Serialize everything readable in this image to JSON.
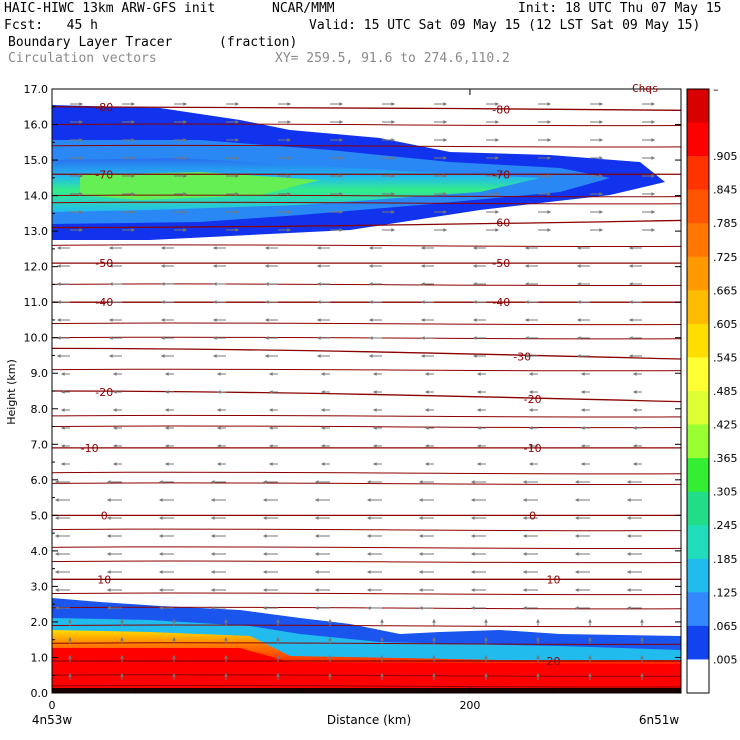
{
  "header": {
    "line1_left": "HAIC-HIWC 13km ARW-GFS init",
    "line1_mid": "NCAR/MMM",
    "line1_right": "Init: 18 UTC Thu 07 May 15",
    "line2_left": "Fcst:   45 h",
    "line2_right": "Valid: 15 UTC Sat 09 May 15 (12 LST Sat 09 May 15)",
    "line3_left": "Boundary Layer Tracer",
    "line3_mid": "(fraction)",
    "line4_left": "Circulation vectors",
    "line4_mid": "XY= 259.5, 91.6 to 274.6,110.2"
  },
  "chart_data": {
    "type": "heatmap",
    "title": "Boundary Layer Tracer (fraction)",
    "subtitle": "Circulation vectors",
    "xlabel": "Distance (km)",
    "ylabel": "Height (km)",
    "xlim": [
      0,
      301
    ],
    "ylim": [
      0,
      17
    ],
    "x_ticks": [
      0,
      200
    ],
    "x_tick_labels": [
      "0",
      "200"
    ],
    "x_end_labels": [
      "4n53w",
      "6n51w"
    ],
    "y_ticks": [
      0,
      1,
      2,
      3,
      4,
      5,
      6,
      7,
      8,
      9,
      10,
      11,
      12,
      13,
      14,
      15,
      16,
      17
    ],
    "y_tick_labels": [
      "0.0",
      "1.0",
      "2.0",
      "3.0",
      "4.0",
      "5.0",
      "6.0",
      "7.0",
      "8.0",
      "9.0",
      "10.0",
      "11.0",
      "12.0",
      "13.0",
      "14.0",
      "15.0",
      "16.0",
      "17.0"
    ],
    "corner_label": "Chqs",
    "colorbar": {
      "labels": [
        "–",
        ".905",
        ".845",
        ".785",
        ".725",
        ".665",
        ".605",
        ".545",
        ".485",
        ".425",
        ".365",
        ".305",
        ".245",
        ".185",
        ".125",
        ".065",
        ".005"
      ],
      "colors": [
        "#d90000",
        "#ff0000",
        "#ff3300",
        "#ff5500",
        "#ff7700",
        "#ff9900",
        "#ffbb00",
        "#ffdd00",
        "#ffff33",
        "#ddff33",
        "#99ff33",
        "#33ee33",
        "#22dd88",
        "#22ddbb",
        "#22bbee",
        "#3388ff",
        "#1144ee",
        "#ffffff"
      ]
    },
    "temperature_contours": [
      {
        "label": "-80",
        "y": 16.5,
        "y_end": 16.4,
        "label_x": [
          25,
          215
        ]
      },
      {
        "label": "-70",
        "y": 14.6,
        "y_end": 14.6,
        "label_x": [
          25,
          215
        ]
      },
      {
        "label": "-60",
        "y": 13.1,
        "y_end": 13.3,
        "label_x": [
          215
        ]
      },
      {
        "label": "-50",
        "y": 12.1,
        "y_end": 12.1,
        "label_x": [
          25,
          215
        ]
      },
      {
        "label": "-40",
        "y": 11.0,
        "y_end": 11.0,
        "label_x": [
          25,
          215
        ]
      },
      {
        "label": "-30",
        "y": 9.7,
        "y_end": 9.4,
        "label_x": [
          225
        ]
      },
      {
        "label": "-20",
        "y": 8.5,
        "y_end": 8.2,
        "label_x": [
          25,
          230
        ]
      },
      {
        "label": "-10",
        "y": 6.9,
        "y_end": 6.9,
        "label_x": [
          18,
          230
        ]
      },
      {
        "label": "0",
        "y": 5.0,
        "y_end": 5.0,
        "label_x": [
          25,
          230
        ]
      },
      {
        "label": "10",
        "y": 3.2,
        "y_end": 3.2,
        "label_x": [
          25,
          240
        ]
      },
      {
        "label": "20",
        "y": 0.9,
        "y_end": 0.9,
        "label_x": [
          240
        ]
      }
    ],
    "extra_contour_levels": [
      16.0,
      15.4,
      14.0,
      13.8,
      12.6,
      11.5,
      10.4,
      10.0,
      9.1,
      7.8,
      7.5,
      6.2,
      5.9,
      4.6,
      4.1,
      3.7,
      2.8,
      2.4,
      1.9,
      1.4,
      0.5,
      0.2
    ]
  }
}
